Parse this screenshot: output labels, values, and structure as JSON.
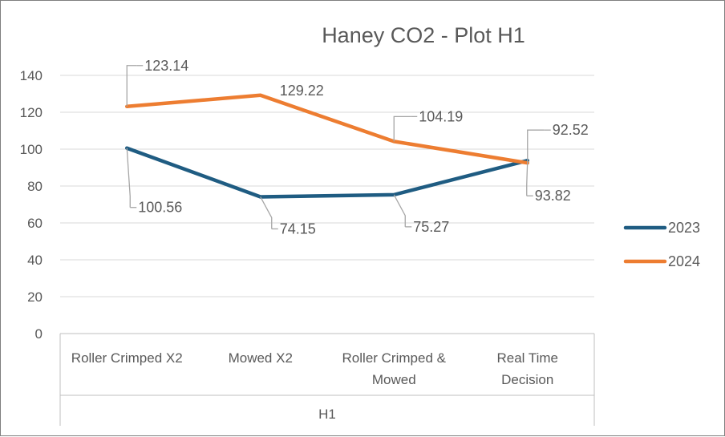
{
  "chart_data": {
    "type": "line",
    "title": "Haney CO2 - Plot H1",
    "categories": [
      [
        "Roller Crimped X2"
      ],
      [
        "Mowed X2"
      ],
      [
        "Roller Crimped &",
        "Mowed"
      ],
      [
        "Real Time",
        "Decision"
      ]
    ],
    "group_label": "H1",
    "ylim": [
      0,
      140
    ],
    "yticks": [
      "0",
      "20",
      "40",
      "60",
      "80",
      "100",
      "120",
      "140"
    ],
    "grid": true,
    "legend_position": "right",
    "series": [
      {
        "name": "2023",
        "color": "#1f5c82",
        "values": [
          100.56,
          74.15,
          75.27,
          93.82
        ],
        "labels": [
          "100.56",
          "74.15",
          "75.27",
          "93.82"
        ]
      },
      {
        "name": "2024",
        "color": "#ed7d31",
        "values": [
          123.14,
          129.22,
          104.19,
          92.52
        ],
        "labels": [
          "123.14",
          "129.22",
          "104.19",
          "92.52"
        ]
      }
    ]
  }
}
